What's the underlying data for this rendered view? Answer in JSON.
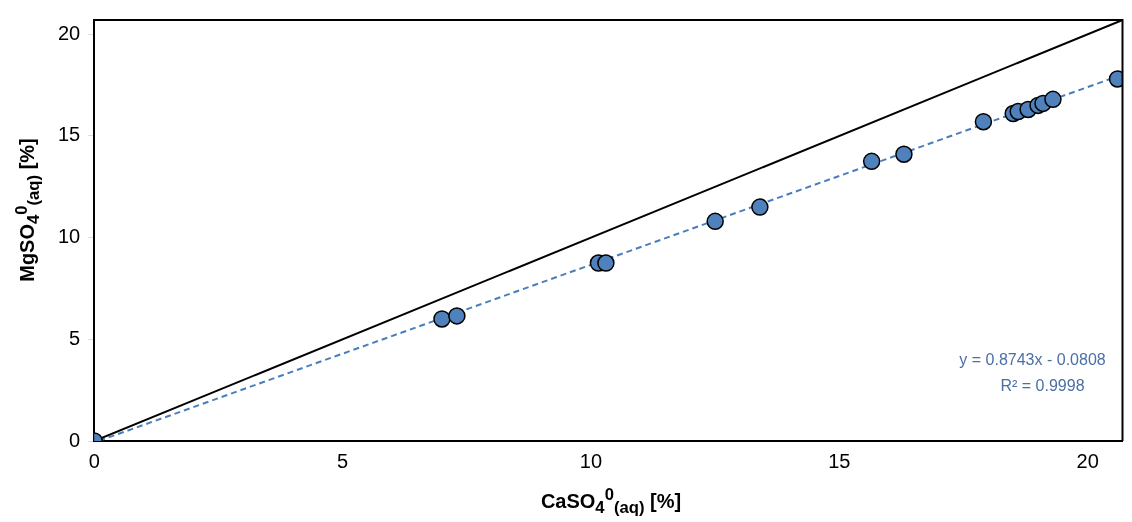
{
  "chart_data": {
    "type": "scatter",
    "xlabel": "CaSO$_{4}$$^{0}$$_{(aq)}$ [%]",
    "ylabel": "MgSO$_{4}$$^{0}$$_{(aq)}$ [%]",
    "xlim": [
      0,
      20.7
    ],
    "ylim": [
      0,
      20.7
    ],
    "xticks": [
      0,
      5,
      10,
      15,
      20
    ],
    "yticks": [
      0,
      5,
      10,
      15,
      20
    ],
    "grid": false,
    "legend": false,
    "marker": "circle",
    "series": [
      {
        "type": "line",
        "color": "#000000",
        "line_style": "solid",
        "marker": "none",
        "x": [
          0,
          20.7
        ],
        "values": [
          0,
          20.7
        ]
      },
      {
        "type": "line",
        "color": "#4a7ebb",
        "line_style": "dashed",
        "marker": "none",
        "x": [
          0.1,
          20.6
        ],
        "values": [
          0.01,
          17.93
        ]
      },
      {
        "color": "#4f81bd",
        "x": [
          0,
          7.0,
          7.3,
          10.15,
          10.3,
          12.5,
          13.4,
          15.65,
          16.3,
          17.9,
          18.5,
          18.6,
          18.8,
          19.0,
          19.1,
          19.3,
          20.6
        ],
        "values": [
          0,
          6.0,
          6.15,
          8.75,
          8.75,
          10.8,
          11.5,
          13.75,
          14.1,
          15.7,
          16.1,
          16.2,
          16.3,
          16.5,
          16.6,
          16.8,
          17.8
        ]
      }
    ],
    "annotations": [
      "y = 0.8743x - 0.0808",
      "R² = 0.9998"
    ]
  }
}
